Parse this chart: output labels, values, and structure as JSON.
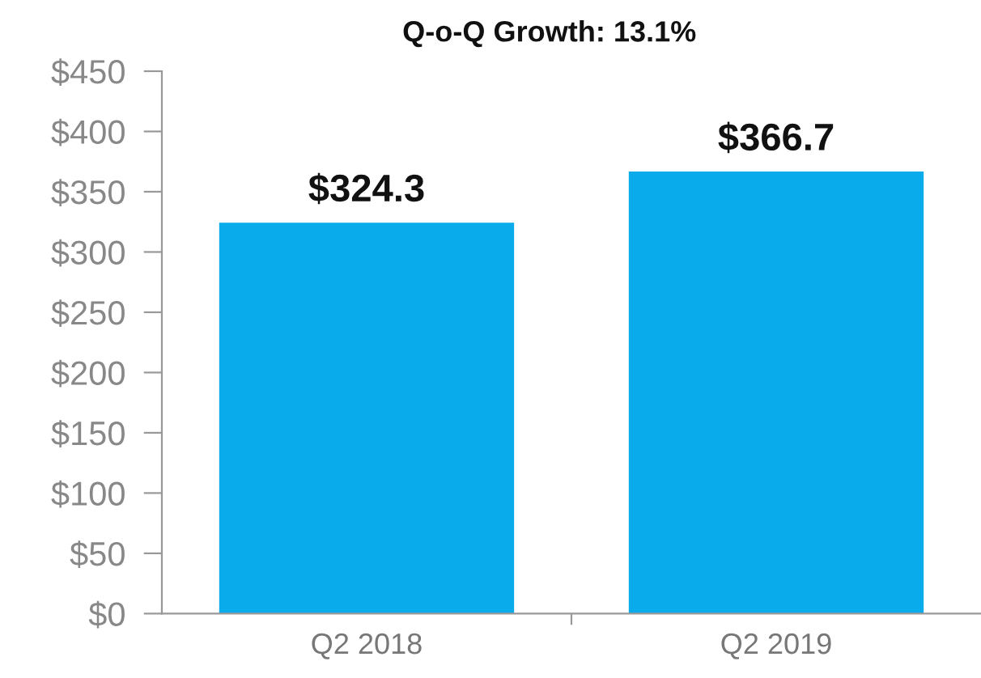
{
  "chart_data": {
    "type": "bar",
    "title": "Q-o-Q Growth: 13.1%",
    "categories": [
      "Q2 2018",
      "Q2 2019"
    ],
    "series": [
      {
        "color": "#0aabeb",
        "values": [
          324.3,
          366.7
        ],
        "value_labels": [
          "$324.3",
          "$366.7"
        ]
      }
    ],
    "ylim": [
      0,
      450
    ],
    "yticks": [
      {
        "value": 0,
        "label": "$0"
      },
      {
        "value": 50,
        "label": "$50"
      },
      {
        "value": 100,
        "label": "$100"
      },
      {
        "value": 150,
        "label": "$150"
      },
      {
        "value": 200,
        "label": "$200"
      },
      {
        "value": 250,
        "label": "$250"
      },
      {
        "value": 300,
        "label": "$300"
      },
      {
        "value": 350,
        "label": "$350"
      },
      {
        "value": 400,
        "label": "$400"
      },
      {
        "value": 450,
        "label": "$450"
      }
    ],
    "grid": false
  }
}
